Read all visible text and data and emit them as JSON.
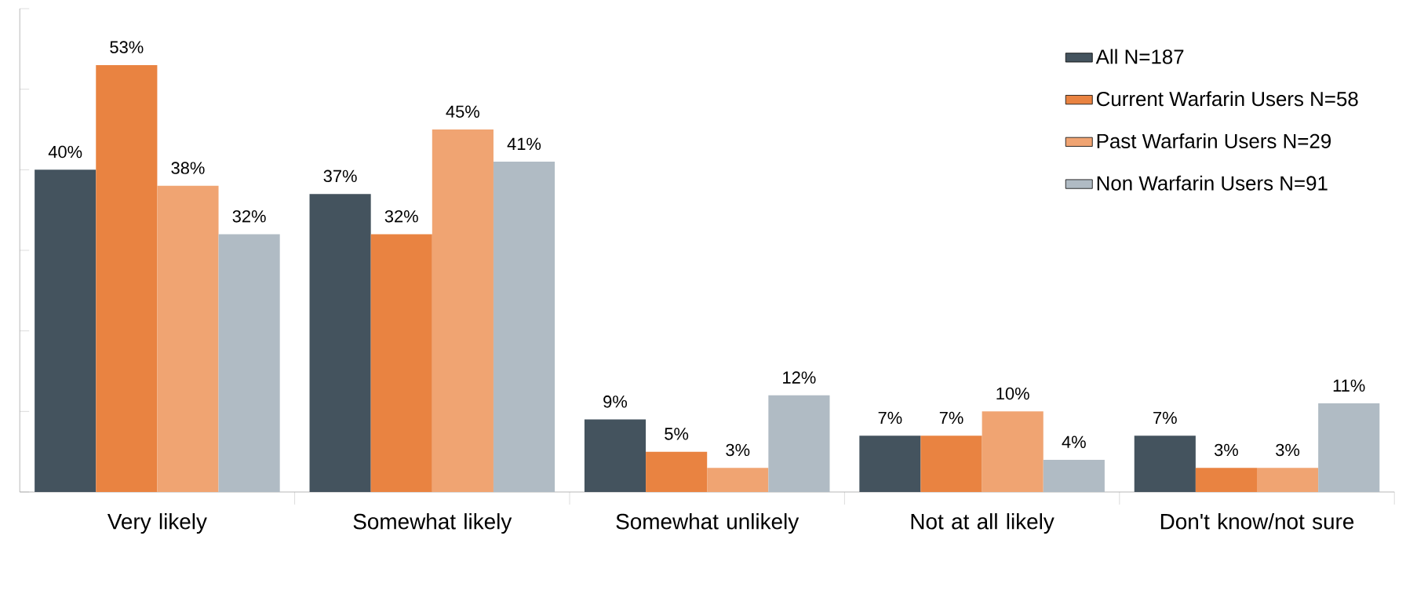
{
  "chart_data": {
    "type": "bar",
    "categories": [
      "Very likely",
      "Somewhat likely",
      "Somewhat unlikely",
      "Not at all likely",
      "Don't know/not sure"
    ],
    "series": [
      {
        "name": "All N=187",
        "color": "#44535e",
        "values": [
          40,
          37,
          9,
          7,
          7
        ],
        "value_labels": [
          "40%",
          "37%",
          "9%",
          "7%",
          "7%"
        ]
      },
      {
        "name": "Current Warfarin Users N=58",
        "color": "#e98341",
        "values": [
          53,
          32,
          5,
          7,
          3
        ],
        "value_labels": [
          "53%",
          "32%",
          "5%",
          "7%",
          "3%"
        ]
      },
      {
        "name": "Past Warfarin Users N=29",
        "color": "#f0a472",
        "values": [
          38,
          45,
          3,
          10,
          3
        ],
        "value_labels": [
          "38%",
          "45%",
          "3%",
          "10%",
          "3%"
        ]
      },
      {
        "name": "Non Warfarin Users N=91",
        "color": "#b0bbc4",
        "values": [
          32,
          41,
          12,
          4,
          11
        ],
        "value_labels": [
          "32%",
          "41%",
          "12%",
          "4%",
          "11%"
        ]
      }
    ],
    "ylim": [
      0,
      60
    ],
    "yticks": [
      {
        "value": 0,
        "label": null
      },
      {
        "value": 10,
        "label": null
      },
      {
        "value": 20,
        "label": null
      },
      {
        "value": 30,
        "label": null
      },
      {
        "value": 40,
        "label": null
      },
      {
        "value": 50,
        "label": null
      },
      {
        "value": 60,
        "label": null
      }
    ],
    "tick_labels": "x",
    "legend": "top right",
    "grid": false
  }
}
